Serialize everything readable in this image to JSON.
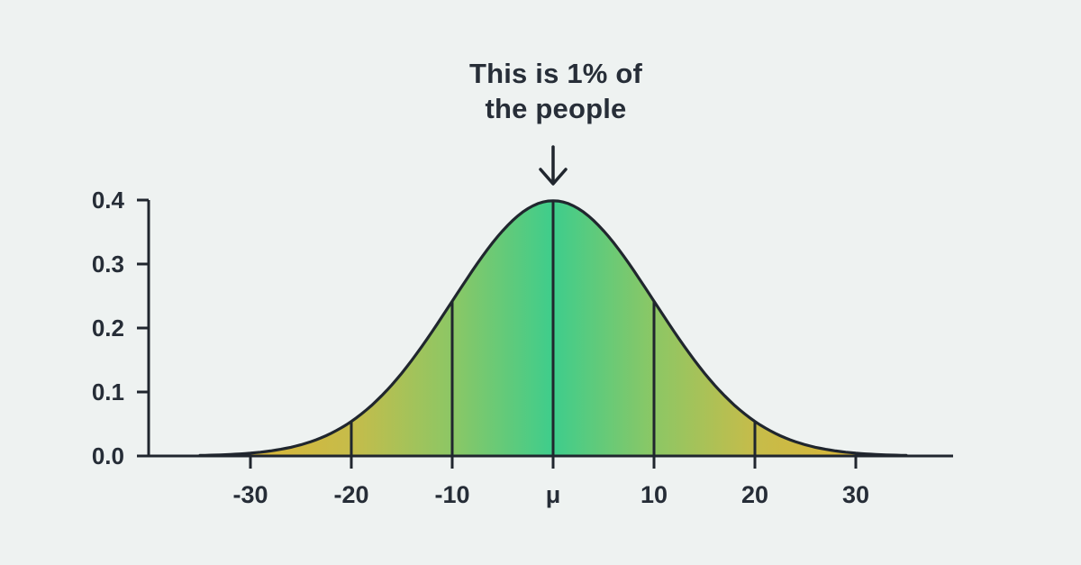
{
  "figure": {
    "background": "#eef2f1"
  },
  "annotation": {
    "line1": "This is 1% of",
    "line2": "the people"
  },
  "chart_data": {
    "type": "area",
    "subtype": "normal-distribution-bell-curve",
    "title": "",
    "xlabel": "",
    "ylabel": "",
    "annotation": "This is 1% of the people",
    "annotation_points_to": "peak of curve at mean",
    "x_tick_labels": [
      "-30",
      "-20",
      "-10",
      "μ",
      "10",
      "20",
      "30"
    ],
    "x_tick_values": [
      -30,
      -20,
      -10,
      0,
      10,
      20,
      30
    ],
    "y_tick_labels": [
      "0.0",
      "0.1",
      "0.2",
      "0.3",
      "0.4"
    ],
    "y_tick_values": [
      0,
      0.1,
      0.2,
      0.3,
      0.4
    ],
    "ylim": [
      0,
      0.4
    ],
    "mean_label": "μ",
    "sigma_units": 10,
    "peak_density": 0.3989,
    "sigma_line_values": [
      -20,
      -10,
      0,
      10,
      20
    ],
    "sigma_line_heights": [
      0.054,
      0.242,
      0.3989,
      0.242,
      0.054
    ],
    "curve_x_range": [
      -35,
      35
    ],
    "grid": false,
    "legend": false,
    "colors": {
      "background": "#eef2f1",
      "ink": "#20262e",
      "label": "#262d37",
      "gradient_center": "#3ecd8c",
      "gradient_one_sigma": "#8cc765",
      "gradient_two_sigma": "#c6bc4a",
      "gradient_tail": "#d9b637"
    }
  }
}
